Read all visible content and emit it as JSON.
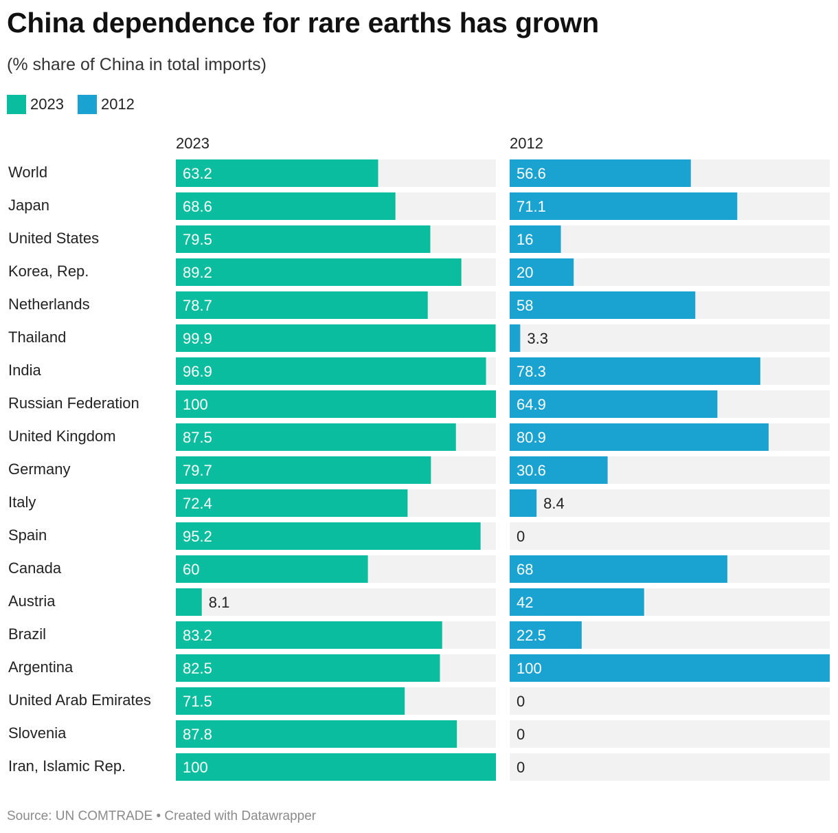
{
  "title": "China dependence for rare earths has grown",
  "subtitle": "(% share of China in total imports)",
  "legend": [
    {
      "label": "2023",
      "color": "#0bbd9f"
    },
    {
      "label": "2012",
      "color": "#1aa3d1"
    }
  ],
  "source": "Source: UN COMTRADE • Created with Datawrapper",
  "chart_data": {
    "type": "bar",
    "orientation": "horizontal",
    "layout": "split-bars",
    "xlim": [
      0,
      100
    ],
    "background_color": "#f2f2f2",
    "categories": [
      "World",
      "Japan",
      "United States",
      "Korea, Rep.",
      "Netherlands",
      "Thailand",
      "India",
      "Russian Federation",
      "United Kingdom",
      "Germany",
      "Italy",
      "Spain",
      "Canada",
      "Austria",
      "Brazil",
      "Argentina",
      "United Arab Emirates",
      "Slovenia",
      "Iran, Islamic Rep."
    ],
    "series": [
      {
        "name": "2023",
        "color": "#0bbd9f",
        "values": [
          63.2,
          68.6,
          79.5,
          89.2,
          78.7,
          99.9,
          96.9,
          100,
          87.5,
          79.7,
          72.4,
          95.2,
          60,
          8.1,
          83.2,
          82.5,
          71.5,
          87.8,
          100
        ]
      },
      {
        "name": "2012",
        "color": "#1aa3d1",
        "values": [
          56.6,
          71.1,
          16,
          20,
          58,
          3.3,
          78.3,
          64.9,
          80.9,
          30.6,
          8.4,
          0,
          68,
          42,
          22.5,
          100,
          0,
          0,
          0
        ]
      }
    ]
  }
}
